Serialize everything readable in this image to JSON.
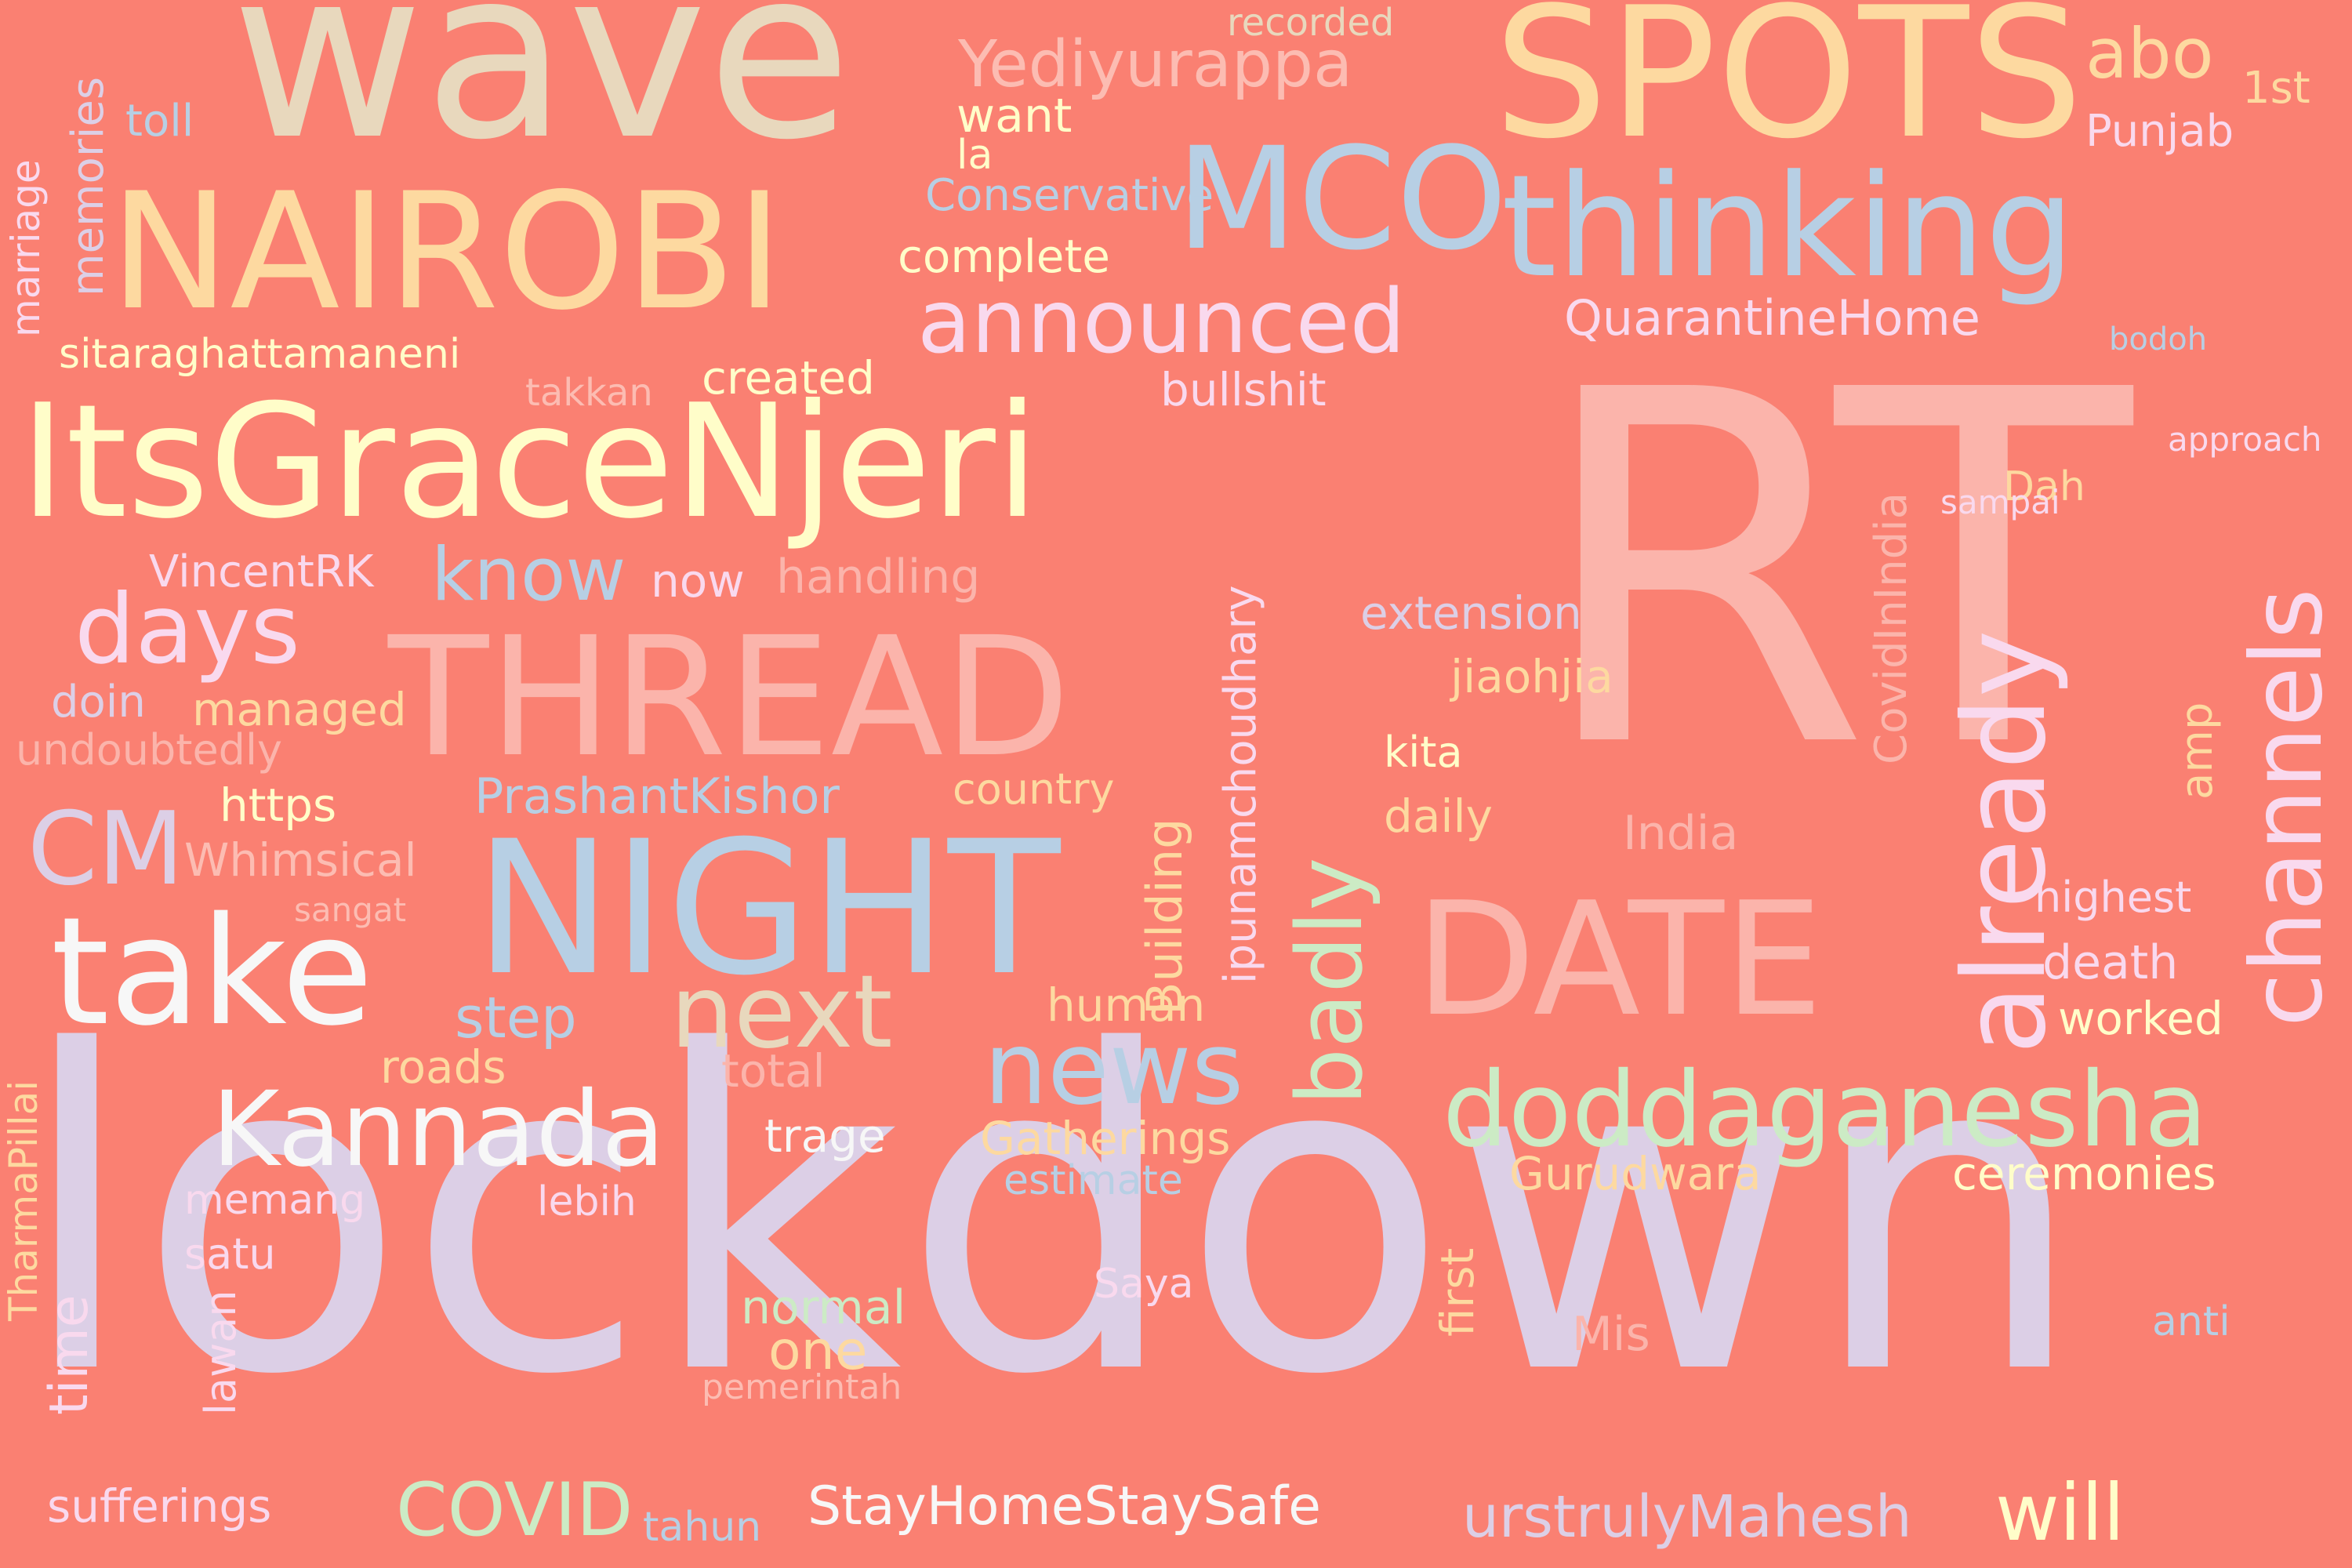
{
  "background": "#fa8072",
  "words": [
    {
      "text": "lockdown",
      "color": "#dccfe6"
    },
    {
      "text": "RT",
      "color": "#fbb4ab"
    },
    {
      "text": "wave",
      "color": "#e8d8bd"
    },
    {
      "text": "SPOTS",
      "color": "#fdd9a0"
    },
    {
      "text": "NAIROBI",
      "color": "#fdd9a0"
    },
    {
      "text": "MCO",
      "color": "#b7cfe4"
    },
    {
      "text": "thinking",
      "color": "#b7cfe4"
    },
    {
      "text": "Yediyurappa",
      "color": "#fcbcb2"
    },
    {
      "text": "abo",
      "color": "#fdd9a0"
    },
    {
      "text": "recorded",
      "color": "#e8d8bd"
    },
    {
      "text": "1st",
      "color": "#fdd9a0"
    },
    {
      "text": "Punjab",
      "color": "#f9d9ee"
    },
    {
      "text": "want",
      "color": "#fffdc9"
    },
    {
      "text": "la",
      "color": "#fffdc9"
    },
    {
      "text": "toll",
      "color": "#b7cfe4"
    },
    {
      "text": "memories",
      "color": "#dccfe6"
    },
    {
      "text": "Conservative",
      "color": "#b7cfe4"
    },
    {
      "text": "marriage",
      "color": "#f9d9ee"
    },
    {
      "text": "complete",
      "color": "#fffdc9"
    },
    {
      "text": "announced",
      "color": "#f9d9ee"
    },
    {
      "text": "QuarantineHome",
      "color": "#f9d9ee"
    },
    {
      "text": "bodoh",
      "color": "#b7cfe4"
    },
    {
      "text": "sitaraghattamaneni",
      "color": "#fffdc9"
    },
    {
      "text": "takkan",
      "color": "#fcbcb2"
    },
    {
      "text": "created",
      "color": "#fffdc9"
    },
    {
      "text": "bullshit",
      "color": "#f9d9ee"
    },
    {
      "text": "ItsGraceNjeri",
      "color": "#fffdc9"
    },
    {
      "text": "approach",
      "color": "#f9d9ee"
    },
    {
      "text": "CovidInIndia",
      "color": "#fbb4ab"
    },
    {
      "text": "Dah",
      "color": "#fdd9a0"
    },
    {
      "text": "sampai",
      "color": "#f9d9ee"
    },
    {
      "text": "channels",
      "color": "#f9d9ee"
    },
    {
      "text": "already",
      "color": "#f9d9ee"
    },
    {
      "text": "VincentRK",
      "color": "#f9d9ee"
    },
    {
      "text": "know",
      "color": "#b7cfe4"
    },
    {
      "text": "now",
      "color": "#f9d9ee"
    },
    {
      "text": "handling",
      "color": "#fbb4ab"
    },
    {
      "text": "days",
      "color": "#f9d9ee"
    },
    {
      "text": "THREAD",
      "color": "#fbb4ab"
    },
    {
      "text": "ipunamchoudhary",
      "color": "#f9d9ee"
    },
    {
      "text": "extension",
      "color": "#dccfe6"
    },
    {
      "text": "badly",
      "color": "#ccebc5"
    },
    {
      "text": "jiaohjia",
      "color": "#fdd9a0"
    },
    {
      "text": "amp",
      "color": "#fdd9a0"
    },
    {
      "text": "doin",
      "color": "#dccfe6"
    },
    {
      "text": "managed",
      "color": "#fdd9a0"
    },
    {
      "text": "undoubtedly",
      "color": "#fbb4ab"
    },
    {
      "text": "Building",
      "color": "#fdd9a0"
    },
    {
      "text": "kita",
      "color": "#fffdc9"
    },
    {
      "text": "https",
      "color": "#fffdc9"
    },
    {
      "text": "PrashantKishor",
      "color": "#b7cfe4"
    },
    {
      "text": "country",
      "color": "#fdd9a0"
    },
    {
      "text": "daily",
      "color": "#fdd9a0"
    },
    {
      "text": "CM",
      "color": "#dccfe6"
    },
    {
      "text": "Whimsical",
      "color": "#fcbcb2"
    },
    {
      "text": "NIGHT",
      "color": "#b7cfe4"
    },
    {
      "text": "India",
      "color": "#fbb4ab"
    },
    {
      "text": "sangat",
      "color": "#fcbcb2"
    },
    {
      "text": "highest",
      "color": "#f9d9ee"
    },
    {
      "text": "DATE",
      "color": "#fbb4ab"
    },
    {
      "text": "take",
      "color": "#f7f7f7"
    },
    {
      "text": "death",
      "color": "#f9d9ee"
    },
    {
      "text": "next",
      "color": "#e8d8bd"
    },
    {
      "text": "step",
      "color": "#b7cfe4"
    },
    {
      "text": "human",
      "color": "#fdd9a0"
    },
    {
      "text": "worked",
      "color": "#fffdc9"
    },
    {
      "text": "news",
      "color": "#b7cfe4"
    },
    {
      "text": "TharmaPillai",
      "color": "#fdd9a0"
    },
    {
      "text": "roads",
      "color": "#fdd9a0"
    },
    {
      "text": "total",
      "color": "#fbb4ab"
    },
    {
      "text": "Kannada",
      "color": "#f7f7f7"
    },
    {
      "text": "doddaganesha",
      "color": "#ccebc5"
    },
    {
      "text": "trage",
      "color": "#f7f7f7"
    },
    {
      "text": "Gatherings",
      "color": "#fdd9a0"
    },
    {
      "text": "Gurudwara",
      "color": "#fdd9a0"
    },
    {
      "text": "ceremonies",
      "color": "#fffdc9"
    },
    {
      "text": "memang",
      "color": "#f9d9ee"
    },
    {
      "text": "estimate",
      "color": "#b7cfe4"
    },
    {
      "text": "lebih",
      "color": "#f9d9ee"
    },
    {
      "text": "first",
      "color": "#fdd9a0"
    },
    {
      "text": "satu",
      "color": "#f9d9ee"
    },
    {
      "text": "time",
      "color": "#f9d9ee"
    },
    {
      "text": "lawan",
      "color": "#f9d9ee"
    },
    {
      "text": "Saya",
      "color": "#f9d9ee"
    },
    {
      "text": "normal",
      "color": "#ccebc5"
    },
    {
      "text": "one",
      "color": "#fdd9a0"
    },
    {
      "text": "Mis",
      "color": "#fbb4ab"
    },
    {
      "text": "anti",
      "color": "#b7cfe4"
    },
    {
      "text": "pemerintah",
      "color": "#fcbcb2"
    },
    {
      "text": "sufferings",
      "color": "#f9d9ee"
    },
    {
      "text": "COVID",
      "color": "#ccebc5"
    },
    {
      "text": "tahun",
      "color": "#b7cfe4"
    },
    {
      "text": "StayHomeStaySafe",
      "color": "#f7f7f7"
    },
    {
      "text": "urstrulyMahesh",
      "color": "#dccfe6"
    },
    {
      "text": "will",
      "color": "#fffdc9"
    }
  ]
}
